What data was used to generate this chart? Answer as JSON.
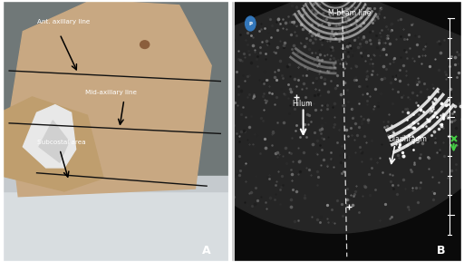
{
  "panel_a_bg": "#8a8a7a",
  "panel_b_bg": "#1a1a1a",
  "white": "#ffffff",
  "black": "#000000",
  "label_a": "A",
  "label_b": "B",
  "text_ant_axillary": "Ant. axillary line",
  "text_mid_axillary": "Mid-axillary line",
  "text_subcostal": "Subcostal area",
  "text_mbeam": "M-beam line",
  "text_hilum": "Hilum",
  "text_diaphragm": "Diaphragm",
  "figsize": [
    5.12,
    2.89
  ],
  "dpi": 100
}
